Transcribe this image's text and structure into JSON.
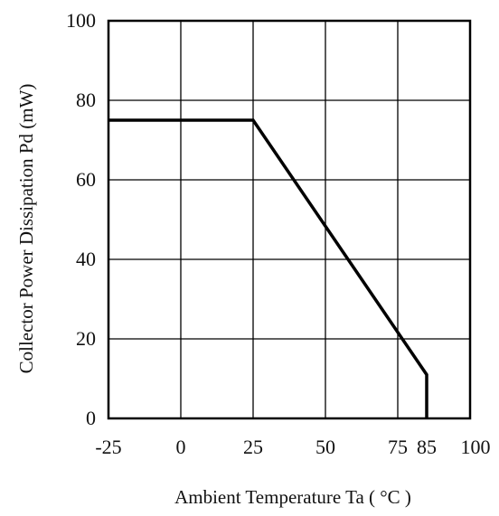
{
  "chart_data": {
    "type": "line",
    "title": "",
    "xlabel": "Ambient Temperature Ta ( °C )",
    "ylabel": "Collector Power Dissipation Pd (mW)",
    "xlim": [
      -25,
      100
    ],
    "ylim": [
      0,
      100
    ],
    "grid": true,
    "x_gridlines": [
      -25,
      0,
      25,
      50,
      75,
      100
    ],
    "y_gridlines": [
      0,
      20,
      40,
      60,
      80,
      100
    ],
    "x_tick_labels": [
      {
        "value": -25,
        "label": "-25"
      },
      {
        "value": 0,
        "label": "0"
      },
      {
        "value": 25,
        "label": "25"
      },
      {
        "value": 50,
        "label": "50"
      },
      {
        "value": 75,
        "label": "75"
      },
      {
        "value": 85,
        "label": "85"
      },
      {
        "value": 100,
        "label": "100"
      }
    ],
    "y_tick_labels": [
      {
        "value": 0,
        "label": "0"
      },
      {
        "value": 20,
        "label": "20"
      },
      {
        "value": 40,
        "label": "40"
      },
      {
        "value": 60,
        "label": "60"
      },
      {
        "value": 80,
        "label": "80"
      },
      {
        "value": 100,
        "label": "100"
      }
    ],
    "series": [
      {
        "x": [
          -25,
          25,
          85,
          85
        ],
        "y": [
          75,
          75,
          11,
          0
        ]
      }
    ],
    "colors": {
      "curve": "#000000",
      "grid": "#000000",
      "text": "#111111"
    }
  }
}
